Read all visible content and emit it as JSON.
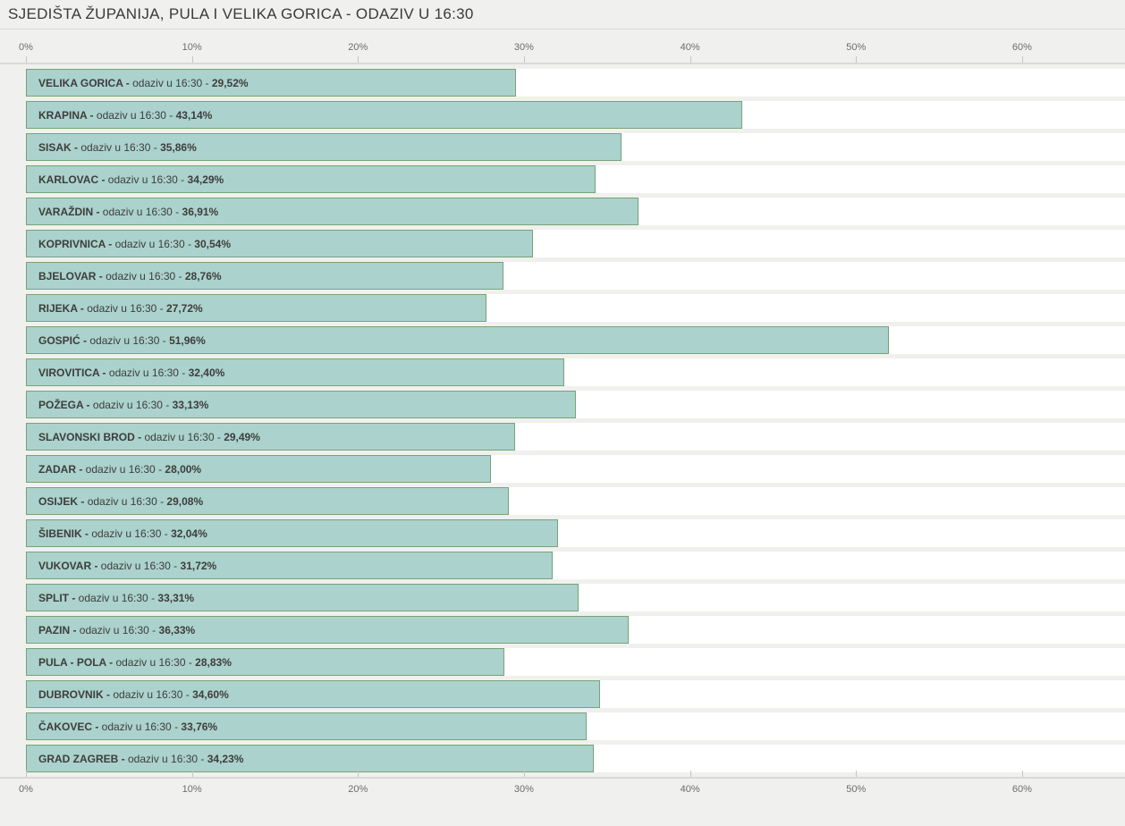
{
  "colors": {
    "page_bg": "#f0f0ee",
    "divider": "#dcdcdc",
    "axis_line": "#d9d9d9",
    "track_bg": "#ffffff",
    "bar_fill": "#abd2cc",
    "bar_border": "#76a474",
    "label_text": "#3d3d3d",
    "axis_text": "#6c6c6c",
    "tick": "#c5c5c5",
    "title_text": "#3a3a3a"
  },
  "chart_data": {
    "type": "bar",
    "orientation": "horizontal",
    "title": "SJEDIŠTA ŽUPANIJA, PULA I VELIKA GORICA - ODAZIV U 16:30",
    "label_infix": "odaziv u 16:30",
    "categories": [
      "VELIKA GORICA",
      "KRAPINA",
      "SISAK",
      "KARLOVAC",
      "VARAŽDIN",
      "KOPRIVNICA",
      "BJELOVAR",
      "RIJEKA",
      "GOSPIĆ",
      "VIROVITICA",
      "POŽEGA",
      "SLAVONSKI BROD",
      "ZADAR",
      "OSIJEK",
      "ŠIBENIK",
      "VUKOVAR",
      "SPLIT",
      "PAZIN",
      "PULA - POLA",
      "DUBROVNIK",
      "ČAKOVEC",
      "GRAD ZAGREB"
    ],
    "values": [
      29.52,
      43.14,
      35.86,
      34.29,
      36.91,
      30.54,
      28.76,
      27.72,
      51.96,
      32.4,
      33.13,
      29.49,
      28.0,
      29.08,
      32.04,
      31.72,
      33.31,
      36.33,
      28.83,
      34.6,
      33.76,
      34.23
    ],
    "value_labels": [
      "29,52%",
      "43,14%",
      "35,86%",
      "34,29%",
      "36,91%",
      "30,54%",
      "28,76%",
      "27,72%",
      "51,96%",
      "32,40%",
      "33,13%",
      "29,49%",
      "28,00%",
      "29,08%",
      "32,04%",
      "31,72%",
      "33,31%",
      "36,33%",
      "28,83%",
      "34,60%",
      "33,76%",
      "34,23%"
    ],
    "xlabel": "",
    "ylabel": "",
    "xlim": [
      0,
      66.2
    ],
    "x_ticks": [
      0,
      10,
      20,
      30,
      40,
      50,
      60
    ],
    "x_tick_labels": [
      "0%",
      "10%",
      "20%",
      "30%",
      "40%",
      "50%",
      "60%"
    ],
    "grid": false,
    "legend": false
  }
}
